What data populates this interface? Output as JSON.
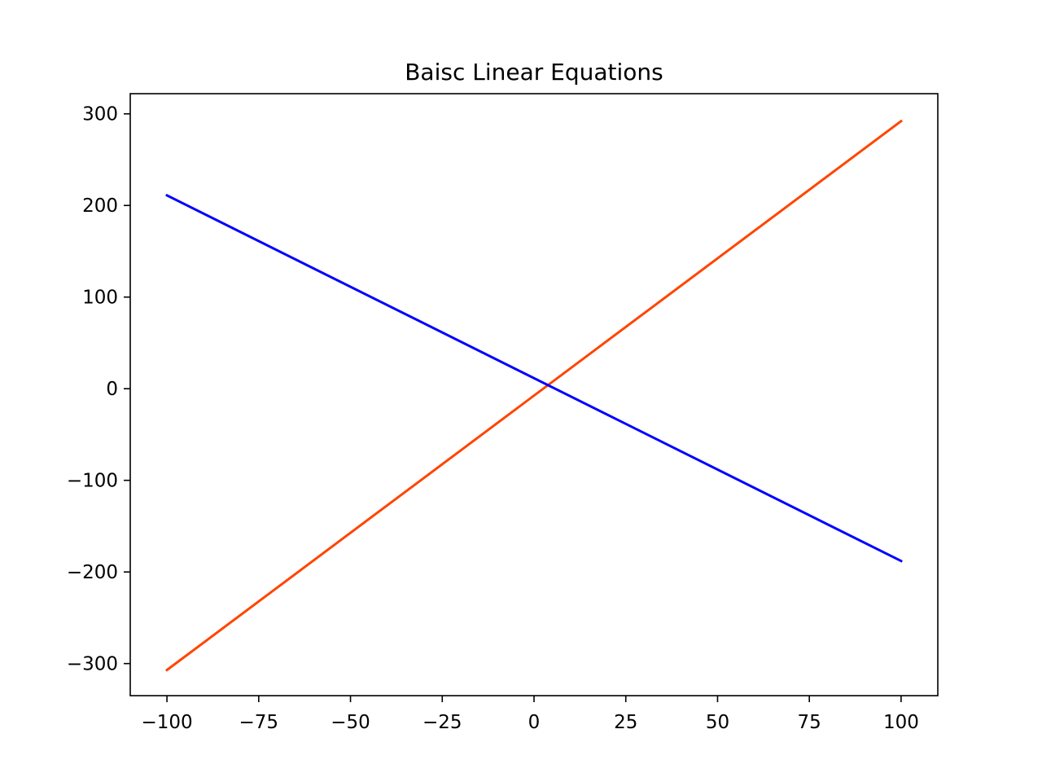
{
  "chart_data": {
    "type": "line",
    "title": "Baisc Linear Equations",
    "xlabel": "",
    "ylabel": "",
    "xlim": [
      -110,
      110
    ],
    "ylim": [
      -335,
      322
    ],
    "x_ticks": [
      -100,
      -75,
      -50,
      -25,
      0,
      25,
      50,
      75,
      100
    ],
    "x_tick_labels": [
      "−100",
      "−75",
      "−50",
      "−25",
      "0",
      "25",
      "50",
      "75",
      "100"
    ],
    "y_ticks": [
      -300,
      -200,
      -100,
      0,
      100,
      200,
      300
    ],
    "y_tick_labels": [
      "−300",
      "−200",
      "−100",
      "0",
      "100",
      "200",
      "300"
    ],
    "grid": false,
    "series": [
      {
        "x": [
          -100,
          100
        ],
        "y": [
          -307,
          292
        ],
        "color": "#ff4500"
      },
      {
        "x": [
          -100,
          100
        ],
        "y": [
          211,
          -188
        ],
        "color": "#0000ff"
      }
    ]
  }
}
